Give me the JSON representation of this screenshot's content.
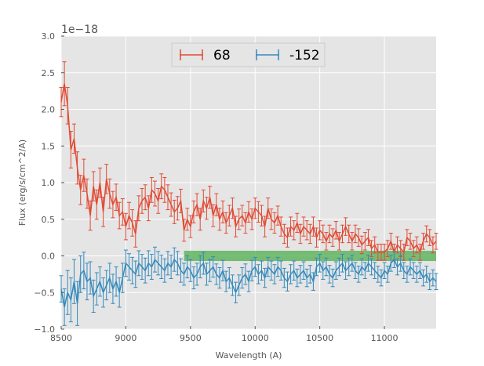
{
  "chart_data": {
    "type": "line",
    "title": "",
    "xlabel": "Wavelength (A)",
    "ylabel": "Flux (erg/s/cm^2/A)",
    "y_offset_label": "1e−18",
    "xlim": [
      8500,
      11400
    ],
    "ylim": [
      -1.0,
      3.0
    ],
    "xticks": [
      8500,
      9000,
      9500,
      10000,
      10500,
      11000
    ],
    "xtick_labels": [
      "8500",
      "9000",
      "9500",
      "10000",
      "10500",
      "11000"
    ],
    "yticks": [
      -1.0,
      -0.5,
      0.0,
      0.5,
      1.0,
      1.5,
      2.0,
      2.5,
      3.0
    ],
    "ytick_labels": [
      "−1.0",
      "−0.5",
      "0.0",
      "0.5",
      "1.0",
      "1.5",
      "2.0",
      "2.5",
      "3.0"
    ],
    "grid": true,
    "legend_position": "top-center",
    "background_color": "#e5e5e5",
    "band": {
      "x0": 9450,
      "x1": 11400,
      "y0": -0.07,
      "y1": 0.07,
      "color": "#4dac4d"
    },
    "series": [
      {
        "name": "68",
        "color": "#e24a33",
        "x": [
          8500,
          8525,
          8550,
          8575,
          8600,
          8625,
          8650,
          8675,
          8700,
          8725,
          8750,
          8775,
          8800,
          8825,
          8850,
          8875,
          8900,
          8925,
          8950,
          8975,
          9000,
          9025,
          9050,
          9075,
          9100,
          9125,
          9150,
          9175,
          9200,
          9225,
          9250,
          9275,
          9300,
          9325,
          9350,
          9375,
          9400,
          9425,
          9450,
          9475,
          9500,
          9525,
          9550,
          9575,
          9600,
          9625,
          9650,
          9675,
          9700,
          9725,
          9750,
          9775,
          9800,
          9825,
          9850,
          9875,
          9900,
          9925,
          9950,
          9975,
          10000,
          10025,
          10050,
          10075,
          10100,
          10125,
          10150,
          10175,
          10200,
          10225,
          10250,
          10275,
          10300,
          10325,
          10350,
          10375,
          10400,
          10425,
          10450,
          10475,
          10500,
          10525,
          10550,
          10575,
          10600,
          10625,
          10650,
          10675,
          10700,
          10725,
          10750,
          10775,
          10800,
          10825,
          10850,
          10875,
          10900,
          10925,
          10950,
          10975,
          11000,
          11025,
          11050,
          11075,
          11100,
          11125,
          11150,
          11175,
          11200,
          11225,
          11250,
          11275,
          11300,
          11325,
          11350,
          11375,
          11400
        ],
        "values": [
          2.1,
          2.35,
          2.05,
          1.45,
          1.6,
          1.2,
          0.9,
          1.1,
          0.85,
          0.55,
          0.95,
          0.7,
          1.0,
          0.6,
          1.05,
          0.85,
          0.7,
          0.8,
          0.55,
          0.6,
          0.4,
          0.55,
          0.45,
          0.3,
          0.65,
          0.75,
          0.8,
          0.65,
          0.9,
          0.85,
          0.75,
          0.95,
          0.9,
          0.8,
          0.7,
          0.6,
          0.65,
          0.75,
          0.35,
          0.5,
          0.4,
          0.6,
          0.7,
          0.5,
          0.75,
          0.65,
          0.8,
          0.55,
          0.7,
          0.5,
          0.6,
          0.45,
          0.55,
          0.65,
          0.4,
          0.5,
          0.55,
          0.45,
          0.6,
          0.5,
          0.65,
          0.6,
          0.55,
          0.4,
          0.65,
          0.5,
          0.45,
          0.55,
          0.4,
          0.3,
          0.25,
          0.4,
          0.35,
          0.45,
          0.3,
          0.4,
          0.35,
          0.3,
          0.4,
          0.25,
          0.35,
          0.3,
          0.2,
          0.3,
          0.25,
          0.35,
          0.2,
          0.3,
          0.4,
          0.3,
          0.2,
          0.3,
          0.25,
          0.15,
          0.2,
          0.25,
          0.1,
          0.15,
          0.05,
          0.05,
          0.05,
          0.1,
          0.2,
          0.05,
          0.15,
          0.1,
          0.05,
          0.25,
          0.2,
          0.1,
          0.15,
          0.05,
          0.2,
          0.3,
          0.25,
          0.15,
          0.2
        ],
        "errors": [
          0.2,
          0.3,
          0.25,
          0.25,
          0.2,
          0.22,
          0.2,
          0.22,
          0.2,
          0.2,
          0.2,
          0.2,
          0.2,
          0.2,
          0.2,
          0.2,
          0.18,
          0.18,
          0.18,
          0.18,
          0.18,
          0.18,
          0.18,
          0.18,
          0.17,
          0.17,
          0.17,
          0.17,
          0.17,
          0.17,
          0.17,
          0.17,
          0.17,
          0.17,
          0.16,
          0.16,
          0.16,
          0.16,
          0.15,
          0.15,
          0.15,
          0.15,
          0.15,
          0.15,
          0.15,
          0.15,
          0.15,
          0.15,
          0.15,
          0.15,
          0.15,
          0.14,
          0.14,
          0.14,
          0.14,
          0.14,
          0.14,
          0.14,
          0.14,
          0.14,
          0.14,
          0.14,
          0.14,
          0.14,
          0.14,
          0.14,
          0.14,
          0.13,
          0.13,
          0.13,
          0.13,
          0.13,
          0.13,
          0.13,
          0.13,
          0.13,
          0.13,
          0.13,
          0.13,
          0.13,
          0.13,
          0.12,
          0.12,
          0.12,
          0.12,
          0.12,
          0.12,
          0.12,
          0.12,
          0.12,
          0.12,
          0.12,
          0.12,
          0.12,
          0.12,
          0.11,
          0.11,
          0.11,
          0.11,
          0.11,
          0.11,
          0.11,
          0.11,
          0.11,
          0.11,
          0.11,
          0.11,
          0.11,
          0.11,
          0.11,
          0.11,
          0.11,
          0.11,
          0.11,
          0.11,
          0.11,
          0.11
        ]
      },
      {
        "name": "-152",
        "color": "#348abd",
        "x": [
          8500,
          8525,
          8550,
          8575,
          8600,
          8625,
          8650,
          8675,
          8700,
          8725,
          8750,
          8775,
          8800,
          8825,
          8850,
          8875,
          8900,
          8925,
          8950,
          8975,
          9000,
          9025,
          9050,
          9075,
          9100,
          9125,
          9150,
          9175,
          9200,
          9225,
          9250,
          9275,
          9300,
          9325,
          9350,
          9375,
          9400,
          9425,
          9450,
          9475,
          9500,
          9525,
          9550,
          9575,
          9600,
          9625,
          9650,
          9675,
          9700,
          9725,
          9750,
          9775,
          9800,
          9825,
          9850,
          9875,
          9900,
          9925,
          9950,
          9975,
          10000,
          10025,
          10050,
          10075,
          10100,
          10125,
          10150,
          10175,
          10200,
          10225,
          10250,
          10275,
          10300,
          10325,
          10350,
          10375,
          10400,
          10425,
          10450,
          10475,
          10500,
          10525,
          10550,
          10575,
          10600,
          10625,
          10650,
          10675,
          10700,
          10725,
          10750,
          10775,
          10800,
          10825,
          10850,
          10875,
          10900,
          10925,
          10950,
          10975,
          11000,
          11025,
          11050,
          11075,
          11100,
          11125,
          11150,
          11175,
          11200,
          11225,
          11250,
          11275,
          11300,
          11325,
          11350,
          11375,
          11400
        ],
        "values": [
          -0.45,
          -0.7,
          -0.5,
          -0.6,
          -0.35,
          -0.65,
          -0.25,
          -0.2,
          -0.35,
          -0.3,
          -0.55,
          -0.45,
          -0.35,
          -0.5,
          -0.4,
          -0.3,
          -0.45,
          -0.35,
          -0.5,
          -0.3,
          -0.1,
          -0.15,
          -0.2,
          -0.25,
          -0.1,
          -0.15,
          -0.2,
          -0.1,
          -0.15,
          -0.05,
          -0.1,
          -0.15,
          -0.2,
          -0.1,
          -0.15,
          -0.05,
          -0.1,
          -0.2,
          -0.25,
          -0.15,
          -0.2,
          -0.3,
          -0.25,
          -0.15,
          -0.1,
          -0.25,
          -0.2,
          -0.15,
          -0.25,
          -0.3,
          -0.2,
          -0.35,
          -0.3,
          -0.4,
          -0.5,
          -0.4,
          -0.3,
          -0.25,
          -0.35,
          -0.2,
          -0.15,
          -0.25,
          -0.2,
          -0.3,
          -0.15,
          -0.2,
          -0.25,
          -0.15,
          -0.2,
          -0.3,
          -0.35,
          -0.25,
          -0.2,
          -0.3,
          -0.25,
          -0.2,
          -0.3,
          -0.25,
          -0.35,
          -0.15,
          -0.1,
          -0.2,
          -0.15,
          -0.25,
          -0.3,
          -0.2,
          -0.15,
          -0.1,
          -0.2,
          -0.15,
          -0.1,
          -0.2,
          -0.25,
          -0.15,
          -0.2,
          -0.1,
          -0.15,
          -0.2,
          -0.25,
          -0.3,
          -0.2,
          -0.25,
          -0.1,
          -0.05,
          -0.15,
          -0.1,
          -0.2,
          -0.25,
          -0.15,
          -0.2,
          -0.25,
          -0.2,
          -0.3,
          -0.25,
          -0.35,
          -0.3,
          -0.35
        ],
        "errors": [
          0.18,
          0.25,
          0.3,
          0.3,
          0.3,
          0.3,
          0.25,
          0.25,
          0.25,
          0.22,
          0.22,
          0.22,
          0.2,
          0.2,
          0.2,
          0.2,
          0.2,
          0.2,
          0.2,
          0.2,
          0.18,
          0.18,
          0.18,
          0.18,
          0.17,
          0.17,
          0.17,
          0.17,
          0.17,
          0.17,
          0.16,
          0.16,
          0.16,
          0.16,
          0.16,
          0.16,
          0.16,
          0.16,
          0.15,
          0.15,
          0.15,
          0.15,
          0.15,
          0.15,
          0.15,
          0.15,
          0.15,
          0.14,
          0.14,
          0.14,
          0.14,
          0.14,
          0.14,
          0.14,
          0.14,
          0.14,
          0.14,
          0.14,
          0.14,
          0.14,
          0.13,
          0.13,
          0.13,
          0.13,
          0.13,
          0.13,
          0.13,
          0.13,
          0.13,
          0.13,
          0.13,
          0.13,
          0.13,
          0.12,
          0.12,
          0.12,
          0.12,
          0.12,
          0.12,
          0.12,
          0.12,
          0.12,
          0.12,
          0.12,
          0.12,
          0.12,
          0.12,
          0.12,
          0.12,
          0.12,
          0.11,
          0.11,
          0.11,
          0.11,
          0.11,
          0.11,
          0.11,
          0.11,
          0.11,
          0.11,
          0.11,
          0.11,
          0.11,
          0.11,
          0.11,
          0.11,
          0.11,
          0.11,
          0.11,
          0.11,
          0.11,
          0.11,
          0.11,
          0.11,
          0.11,
          0.11,
          0.11
        ]
      }
    ]
  }
}
